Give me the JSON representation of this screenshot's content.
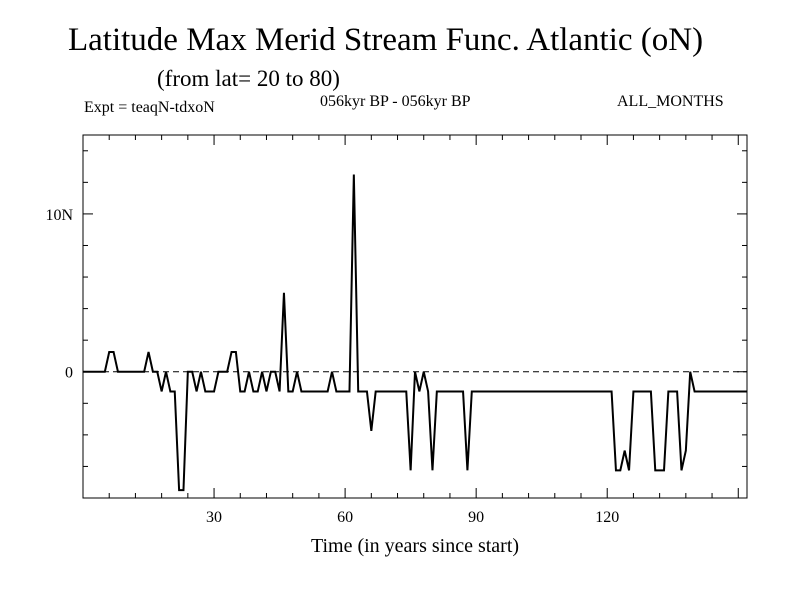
{
  "chart_data": {
    "type": "line",
    "title": "Latitude Max Merid Stream Func. Atlantic (oN)",
    "subtitle": "(from lat= 20 to 80)",
    "experiment": "Expt = teaqN-tdxoN",
    "period": "056kyr BP - 056kyr BP",
    "months": "ALL_MONTHS",
    "xlabel": "Time (in years since start)",
    "ylabel": "",
    "xlim": [
      0,
      152
    ],
    "ylim": [
      -8,
      15
    ],
    "xticks": [
      30,
      60,
      90,
      120
    ],
    "xtick_labels": [
      "30",
      "60",
      "90",
      "120"
    ],
    "yticks": [
      0,
      10
    ],
    "ytick_labels": [
      "0",
      "10N"
    ],
    "reference_line": 0,
    "x": [
      0,
      1,
      2,
      3,
      4,
      5,
      6,
      7,
      8,
      9,
      10,
      11,
      12,
      13,
      14,
      15,
      16,
      17,
      18,
      19,
      20,
      21,
      22,
      23,
      24,
      25,
      26,
      27,
      28,
      29,
      30,
      31,
      32,
      33,
      34,
      35,
      36,
      37,
      38,
      39,
      40,
      41,
      42,
      43,
      44,
      45,
      46,
      47,
      48,
      49,
      50,
      51,
      52,
      53,
      54,
      55,
      56,
      57,
      58,
      59,
      60,
      61,
      62,
      63,
      64,
      65,
      66,
      67,
      68,
      69,
      70,
      71,
      72,
      73,
      74,
      75,
      76,
      77,
      78,
      79,
      80,
      81,
      82,
      83,
      84,
      85,
      86,
      87,
      88,
      89,
      90,
      91,
      92,
      93,
      94,
      95,
      96,
      97,
      98,
      99,
      100,
      101,
      102,
      103,
      104,
      105,
      106,
      107,
      108,
      109,
      110,
      111,
      112,
      113,
      114,
      115,
      116,
      117,
      118,
      119,
      120,
      121,
      122,
      123,
      124,
      125,
      126,
      127,
      128,
      129,
      130,
      131,
      132,
      133,
      134,
      135,
      136,
      137,
      138,
      139,
      140,
      141,
      142,
      143,
      144,
      145,
      146,
      147,
      148,
      149,
      150,
      151,
      152
    ],
    "values": [
      0,
      0,
      0,
      0,
      0,
      0,
      1.25,
      1.25,
      0,
      0,
      0,
      0,
      0,
      0,
      0,
      1.25,
      0,
      0,
      -1.25,
      0,
      -1.25,
      -1.25,
      -7.5,
      -7.5,
      0,
      0,
      -1.25,
      0,
      -1.25,
      -1.25,
      -1.25,
      0,
      0,
      0,
      1.25,
      1.25,
      -1.25,
      -1.25,
      0,
      -1.25,
      -1.25,
      0,
      -1.25,
      0,
      0,
      -1.25,
      5,
      -1.25,
      -1.25,
      0,
      -1.25,
      -1.25,
      -1.25,
      -1.25,
      -1.25,
      -1.25,
      -1.25,
      0,
      -1.25,
      -1.25,
      -1.25,
      -1.25,
      12.5,
      -1.25,
      -1.25,
      -1.25,
      -3.75,
      -1.25,
      -1.25,
      -1.25,
      -1.25,
      -1.25,
      -1.25,
      -1.25,
      -1.25,
      -6.25,
      0,
      -1.25,
      0,
      -1.25,
      -6.25,
      -1.25,
      -1.25,
      -1.25,
      -1.25,
      -1.25,
      -1.25,
      -1.25,
      -6.25,
      -1.25,
      -1.25,
      -1.25,
      -1.25,
      -1.25,
      -1.25,
      -1.25,
      -1.25,
      -1.25,
      -1.25,
      -1.25,
      -1.25,
      -1.25,
      -1.25,
      -1.25,
      -1.25,
      -1.25,
      -1.25,
      -1.25,
      -1.25,
      -1.25,
      -1.25,
      -1.25,
      -1.25,
      -1.25,
      -1.25,
      -1.25,
      -1.25,
      -1.25,
      -1.25,
      -1.25,
      -1.25,
      -1.25,
      -6.25,
      -6.25,
      -5,
      -6.25,
      -1.25,
      -1.25,
      -1.25,
      -1.25,
      -1.25,
      -6.25,
      -6.25,
      -6.25,
      -1.25,
      -1.25,
      -1.25,
      -6.25,
      -5,
      0,
      -1.25,
      -1.25,
      -1.25,
      -1.25,
      -1.25,
      -1.25,
      -1.25,
      -1.25,
      -1.25,
      -1.25,
      -1.25,
      -1.25,
      -1.25
    ]
  }
}
